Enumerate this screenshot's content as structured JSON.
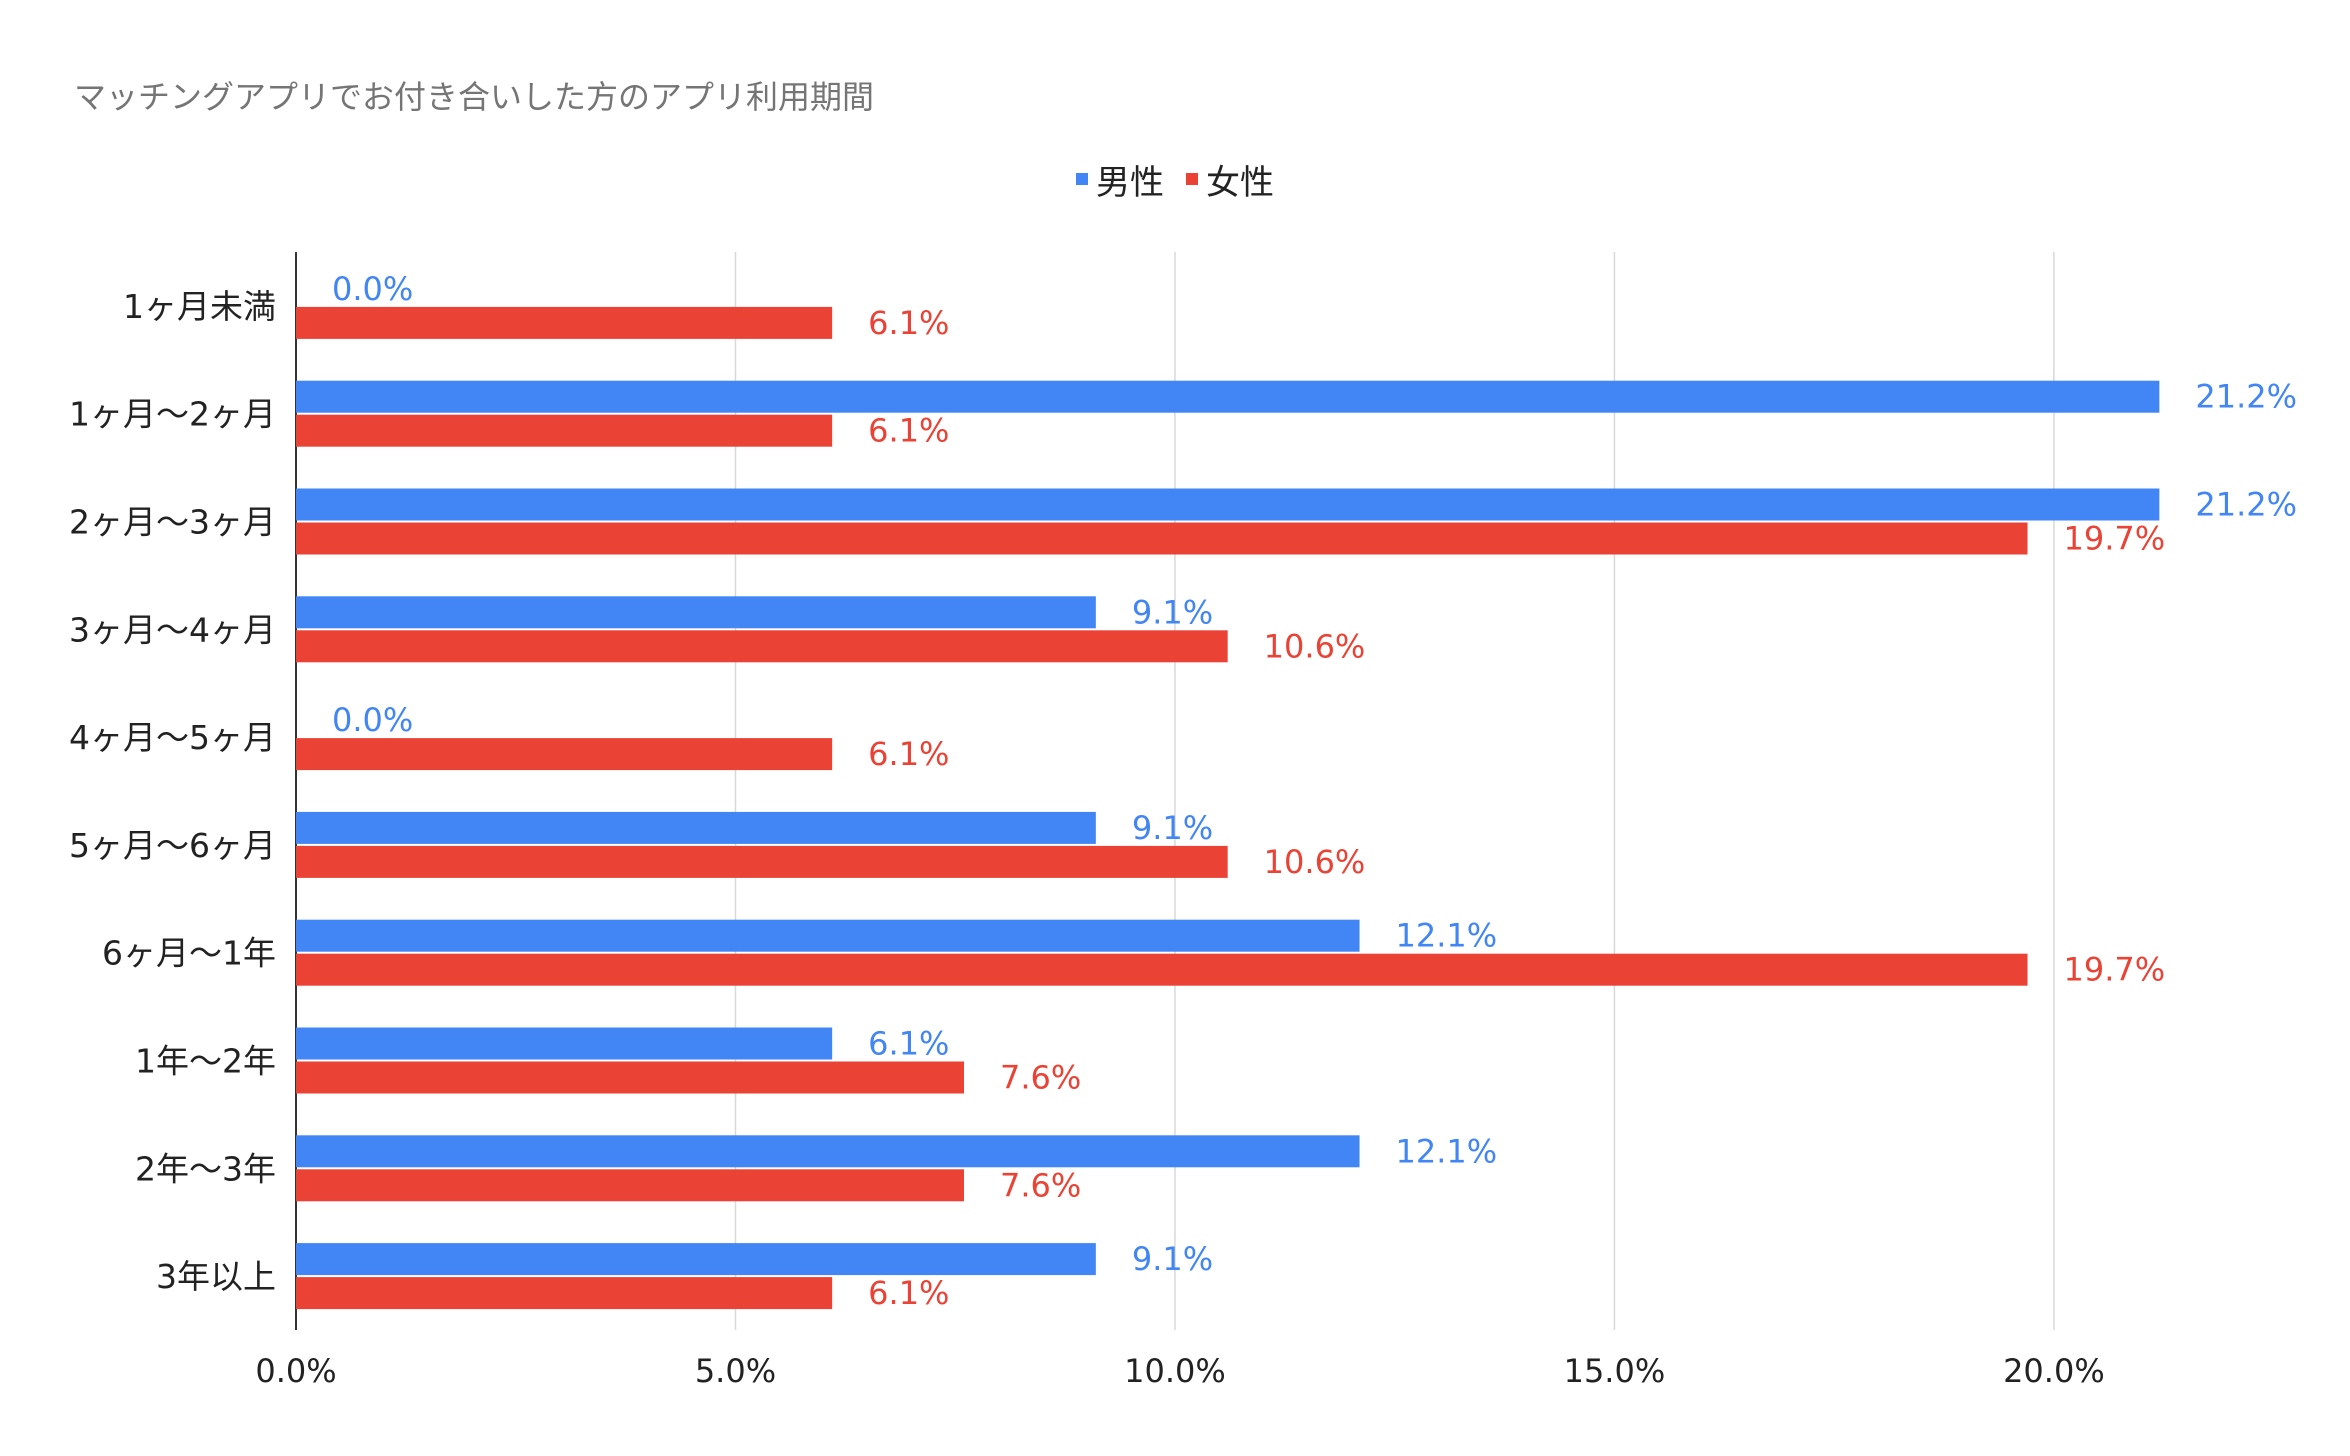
{
  "chart_data": {
    "type": "bar",
    "orientation": "horizontal",
    "title": "マッチングアプリでお付き合いした方のアプリ利用期間",
    "categories": [
      "1ヶ月未満",
      "1ヶ月〜2ヶ月",
      "2ヶ月〜3ヶ月",
      "3ヶ月〜4ヶ月",
      "4ヶ月〜5ヶ月",
      "5ヶ月〜6ヶ月",
      "6ヶ月〜1年",
      "1年〜2年",
      "2年〜3年",
      "3年以上"
    ],
    "series": [
      {
        "name": "男性",
        "color": "#4285f4",
        "values": [
          0.0,
          21.2,
          21.2,
          9.1,
          0.0,
          9.1,
          12.1,
          6.1,
          12.1,
          9.1
        ],
        "labels": [
          "0.0%",
          "21.2%",
          "21.2%",
          "9.1%",
          "0.0%",
          "9.1%",
          "12.1%",
          "6.1%",
          "12.1%",
          "9.1%"
        ]
      },
      {
        "name": "女性",
        "color": "#ea4335",
        "values": [
          6.1,
          6.1,
          19.7,
          10.6,
          6.1,
          10.6,
          19.7,
          7.6,
          7.6,
          6.1
        ],
        "labels": [
          "6.1%",
          "6.1%",
          "19.7%",
          "10.6%",
          "6.1%",
          "10.6%",
          "19.7%",
          "7.6%",
          "7.6%",
          "6.1%"
        ]
      }
    ],
    "xlim": [
      0,
      22.8
    ],
    "xticks": [
      0,
      5,
      10,
      15,
      20
    ],
    "xtick_labels": [
      "0.0%",
      "5.0%",
      "10.0%",
      "15.0%",
      "20.0%"
    ],
    "grid": true,
    "legend_position": "top-center",
    "xlabel": "",
    "ylabel": ""
  }
}
